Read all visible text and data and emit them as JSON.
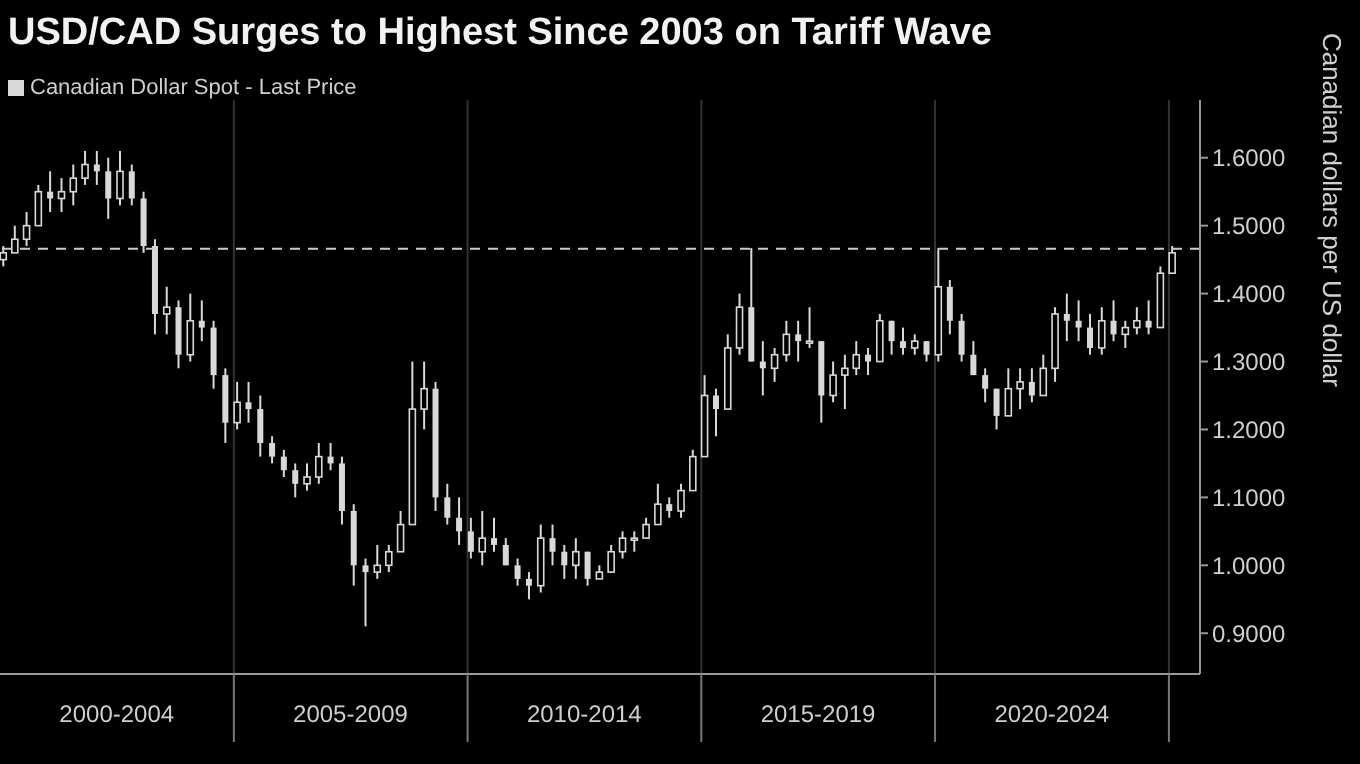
{
  "chart_data": {
    "type": "candlestick",
    "title": "USD/CAD Surges to Highest Since 2003 on Tariff Wave",
    "ylabel": "Canadian dollars per US dollar",
    "legend": "top left",
    "grid": true,
    "x": [
      "2000-02",
      "2000-05",
      "2000-08",
      "2000-11",
      "2001-02",
      "2001-05",
      "2001-08",
      "2001-11",
      "2002-02",
      "2002-05",
      "2002-08",
      "2002-11",
      "2003-02",
      "2003-05",
      "2003-08",
      "2003-11",
      "2004-02",
      "2004-05",
      "2004-08",
      "2004-11",
      "2005-02",
      "2005-05",
      "2005-08",
      "2005-11",
      "2006-02",
      "2006-05",
      "2006-08",
      "2006-11",
      "2007-02",
      "2007-05",
      "2007-08",
      "2007-11",
      "2008-02",
      "2008-05",
      "2008-08",
      "2008-11",
      "2009-02",
      "2009-05",
      "2009-08",
      "2009-11",
      "2010-02",
      "2010-05",
      "2010-08",
      "2010-11",
      "2011-02",
      "2011-05",
      "2011-08",
      "2011-11",
      "2012-02",
      "2012-05",
      "2012-08",
      "2012-11",
      "2013-02",
      "2013-05",
      "2013-08",
      "2013-11",
      "2014-02",
      "2014-05",
      "2014-08",
      "2014-11",
      "2015-02",
      "2015-05",
      "2015-08",
      "2015-11",
      "2016-02",
      "2016-05",
      "2016-08",
      "2016-11",
      "2017-02",
      "2017-05",
      "2017-08",
      "2017-11",
      "2018-02",
      "2018-05",
      "2018-08",
      "2018-11",
      "2019-02",
      "2019-05",
      "2019-08",
      "2019-11",
      "2020-02",
      "2020-05",
      "2020-08",
      "2020-11",
      "2021-02",
      "2021-05",
      "2021-08",
      "2021-11",
      "2022-02",
      "2022-05",
      "2022-08",
      "2022-11",
      "2023-02",
      "2023-05",
      "2023-08",
      "2023-11",
      "2024-02",
      "2024-05",
      "2024-08",
      "2024-11",
      "2025-02"
    ],
    "series": [
      {
        "name": "Canadian Dollar Spot - Last Price",
        "color": "#d9d9d9",
        "ohlc": [
          [
            1.45,
            1.47,
            1.44,
            1.46
          ],
          [
            1.46,
            1.5,
            1.46,
            1.48
          ],
          [
            1.48,
            1.52,
            1.47,
            1.5
          ],
          [
            1.5,
            1.56,
            1.5,
            1.55
          ],
          [
            1.55,
            1.58,
            1.52,
            1.54
          ],
          [
            1.54,
            1.57,
            1.52,
            1.55
          ],
          [
            1.55,
            1.59,
            1.53,
            1.57
          ],
          [
            1.57,
            1.61,
            1.56,
            1.59
          ],
          [
            1.59,
            1.61,
            1.56,
            1.58
          ],
          [
            1.58,
            1.6,
            1.51,
            1.54
          ],
          [
            1.54,
            1.61,
            1.53,
            1.58
          ],
          [
            1.58,
            1.59,
            1.53,
            1.54
          ],
          [
            1.54,
            1.55,
            1.46,
            1.47
          ],
          [
            1.47,
            1.48,
            1.34,
            1.37
          ],
          [
            1.37,
            1.41,
            1.34,
            1.38
          ],
          [
            1.38,
            1.39,
            1.29,
            1.31
          ],
          [
            1.31,
            1.4,
            1.3,
            1.36
          ],
          [
            1.36,
            1.39,
            1.33,
            1.35
          ],
          [
            1.35,
            1.36,
            1.26,
            1.28
          ],
          [
            1.28,
            1.29,
            1.18,
            1.21
          ],
          [
            1.21,
            1.27,
            1.2,
            1.24
          ],
          [
            1.24,
            1.27,
            1.21,
            1.23
          ],
          [
            1.23,
            1.25,
            1.16,
            1.18
          ],
          [
            1.18,
            1.19,
            1.15,
            1.16
          ],
          [
            1.16,
            1.17,
            1.13,
            1.14
          ],
          [
            1.14,
            1.15,
            1.1,
            1.12
          ],
          [
            1.12,
            1.15,
            1.11,
            1.13
          ],
          [
            1.13,
            1.18,
            1.12,
            1.16
          ],
          [
            1.16,
            1.18,
            1.14,
            1.15
          ],
          [
            1.15,
            1.16,
            1.06,
            1.08
          ],
          [
            1.08,
            1.09,
            0.97,
            1.0
          ],
          [
            1.0,
            1.01,
            0.91,
            0.99
          ],
          [
            0.99,
            1.03,
            0.98,
            1.0
          ],
          [
            1.0,
            1.03,
            0.99,
            1.02
          ],
          [
            1.02,
            1.08,
            1.02,
            1.06
          ],
          [
            1.06,
            1.3,
            1.06,
            1.23
          ],
          [
            1.23,
            1.3,
            1.2,
            1.26
          ],
          [
            1.26,
            1.27,
            1.08,
            1.1
          ],
          [
            1.1,
            1.12,
            1.06,
            1.07
          ],
          [
            1.07,
            1.1,
            1.03,
            1.05
          ],
          [
            1.05,
            1.07,
            1.01,
            1.02
          ],
          [
            1.02,
            1.08,
            1.0,
            1.04
          ],
          [
            1.04,
            1.07,
            1.02,
            1.03
          ],
          [
            1.03,
            1.04,
            1.0,
            1.0
          ],
          [
            1.0,
            1.01,
            0.97,
            0.98
          ],
          [
            0.98,
            0.99,
            0.95,
            0.97
          ],
          [
            0.97,
            1.06,
            0.96,
            1.04
          ],
          [
            1.04,
            1.06,
            1.0,
            1.02
          ],
          [
            1.02,
            1.03,
            0.98,
            1.0
          ],
          [
            1.0,
            1.04,
            0.98,
            1.02
          ],
          [
            1.02,
            1.02,
            0.97,
            0.98
          ],
          [
            0.98,
            1.0,
            0.98,
            0.99
          ],
          [
            0.99,
            1.03,
            0.99,
            1.02
          ],
          [
            1.02,
            1.05,
            1.01,
            1.04
          ],
          [
            1.04,
            1.05,
            1.02,
            1.04
          ],
          [
            1.04,
            1.07,
            1.04,
            1.06
          ],
          [
            1.06,
            1.12,
            1.06,
            1.09
          ],
          [
            1.09,
            1.1,
            1.07,
            1.08
          ],
          [
            1.08,
            1.12,
            1.07,
            1.11
          ],
          [
            1.11,
            1.17,
            1.11,
            1.16
          ],
          [
            1.16,
            1.28,
            1.16,
            1.25
          ],
          [
            1.25,
            1.26,
            1.19,
            1.23
          ],
          [
            1.23,
            1.34,
            1.23,
            1.32
          ],
          [
            1.32,
            1.4,
            1.31,
            1.38
          ],
          [
            1.38,
            1.467,
            1.3,
            1.3
          ],
          [
            1.3,
            1.33,
            1.25,
            1.29
          ],
          [
            1.29,
            1.32,
            1.27,
            1.31
          ],
          [
            1.31,
            1.36,
            1.3,
            1.34
          ],
          [
            1.34,
            1.36,
            1.3,
            1.33
          ],
          [
            1.33,
            1.38,
            1.32,
            1.33
          ],
          [
            1.33,
            1.33,
            1.21,
            1.25
          ],
          [
            1.25,
            1.3,
            1.24,
            1.28
          ],
          [
            1.28,
            1.31,
            1.23,
            1.29
          ],
          [
            1.29,
            1.33,
            1.28,
            1.31
          ],
          [
            1.31,
            1.32,
            1.28,
            1.3
          ],
          [
            1.3,
            1.37,
            1.3,
            1.36
          ],
          [
            1.36,
            1.36,
            1.31,
            1.33
          ],
          [
            1.33,
            1.35,
            1.31,
            1.32
          ],
          [
            1.32,
            1.34,
            1.31,
            1.33
          ],
          [
            1.33,
            1.33,
            1.3,
            1.31
          ],
          [
            1.31,
            1.467,
            1.3,
            1.41
          ],
          [
            1.41,
            1.42,
            1.34,
            1.36
          ],
          [
            1.36,
            1.37,
            1.3,
            1.31
          ],
          [
            1.31,
            1.33,
            1.28,
            1.28
          ],
          [
            1.28,
            1.29,
            1.24,
            1.26
          ],
          [
            1.26,
            1.26,
            1.2,
            1.22
          ],
          [
            1.22,
            1.29,
            1.22,
            1.26
          ],
          [
            1.26,
            1.29,
            1.23,
            1.27
          ],
          [
            1.27,
            1.29,
            1.24,
            1.25
          ],
          [
            1.25,
            1.31,
            1.25,
            1.29
          ],
          [
            1.29,
            1.38,
            1.27,
            1.37
          ],
          [
            1.37,
            1.4,
            1.33,
            1.36
          ],
          [
            1.36,
            1.39,
            1.33,
            1.35
          ],
          [
            1.35,
            1.37,
            1.31,
            1.32
          ],
          [
            1.32,
            1.38,
            1.31,
            1.36
          ],
          [
            1.36,
            1.39,
            1.33,
            1.34
          ],
          [
            1.34,
            1.36,
            1.32,
            1.35
          ],
          [
            1.35,
            1.38,
            1.34,
            1.36
          ],
          [
            1.36,
            1.39,
            1.34,
            1.35
          ],
          [
            1.35,
            1.44,
            1.35,
            1.43
          ],
          [
            1.43,
            1.47,
            1.43,
            1.46
          ]
        ]
      }
    ],
    "xlim": [
      "2000-01",
      "2025-09"
    ],
    "xticks": [
      {
        "value": "2002-07",
        "label": "2000-2004"
      },
      {
        "value": "2005-01",
        "label": null
      },
      {
        "value": "2007-07",
        "label": "2005-2009"
      },
      {
        "value": "2010-01",
        "label": null
      },
      {
        "value": "2012-07",
        "label": "2010-2014"
      },
      {
        "value": "2015-01",
        "label": null
      },
      {
        "value": "2017-07",
        "label": "2015-2019"
      },
      {
        "value": "2020-01",
        "label": null
      },
      {
        "value": "2022-07",
        "label": "2020-2024"
      },
      {
        "value": "2025-01",
        "label": null
      }
    ],
    "ylim": [
      0.84,
      1.685
    ],
    "yticks": [
      {
        "value": 0.9,
        "label": "0.9000"
      },
      {
        "value": 1.0,
        "label": "1.0000"
      },
      {
        "value": 1.1,
        "label": "1.1000"
      },
      {
        "value": 1.2,
        "label": "1.2000"
      },
      {
        "value": 1.3,
        "label": "1.3000"
      },
      {
        "value": 1.4,
        "label": "1.4000"
      },
      {
        "value": 1.5,
        "label": "1.5000"
      },
      {
        "value": 1.6,
        "label": "1.6000"
      }
    ],
    "ref_lines": [
      {
        "axis": "y",
        "value": 1.466,
        "color": "#cccccc",
        "line_style": "dashed"
      }
    ]
  }
}
